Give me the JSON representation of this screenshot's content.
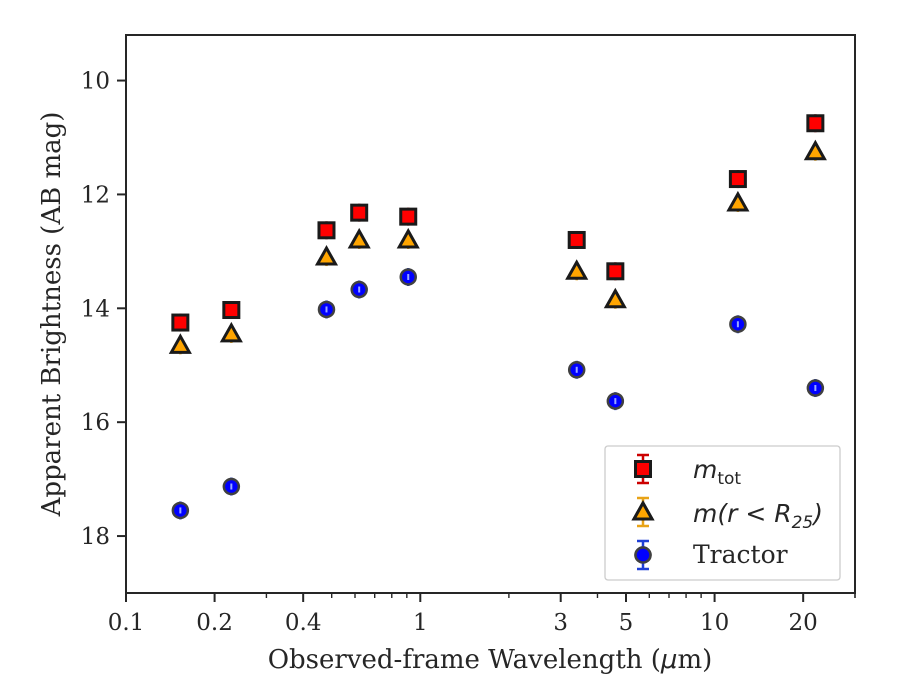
{
  "chart_data": {
    "type": "scatter",
    "title": "",
    "xlabel": "Observed-frame Wavelength (",
    "xlabel_unit": "μ",
    "xlabel_tail": "m)",
    "ylabel": "Apparent Brightness (AB mag)",
    "xscale": "log",
    "xlim": [
      0.1,
      30
    ],
    "ylim": [
      19,
      9.2
    ],
    "y_inverted": true,
    "grid": false,
    "legend_position": "bottom-right",
    "x_ticks": [
      {
        "value": 0.1,
        "label": "0.1"
      },
      {
        "value": 0.2,
        "label": "0.2"
      },
      {
        "value": 0.4,
        "label": "0.4"
      },
      {
        "value": 1,
        "label": "1"
      },
      {
        "value": 3,
        "label": "3"
      },
      {
        "value": 5,
        "label": "5"
      },
      {
        "value": 10,
        "label": "10"
      },
      {
        "value": 20,
        "label": "20"
      }
    ],
    "y_ticks": [
      {
        "value": 10,
        "label": "10"
      },
      {
        "value": 12,
        "label": "12"
      },
      {
        "value": 14,
        "label": "14"
      },
      {
        "value": 16,
        "label": "16"
      },
      {
        "value": 18,
        "label": "18"
      }
    ],
    "series": [
      {
        "legend_base": "m",
        "legend_sub": "tot",
        "legend_tail": "",
        "marker": "square",
        "color": "#ff0000",
        "edge": "#1a1a1a",
        "error_color": "#cc0000",
        "points": [
          {
            "x": 0.153,
            "y": 14.25
          },
          {
            "x": 0.228,
            "y": 14.03
          },
          {
            "x": 0.48,
            "y": 12.63
          },
          {
            "x": 0.62,
            "y": 12.32
          },
          {
            "x": 0.91,
            "y": 12.39
          },
          {
            "x": 3.4,
            "y": 12.8
          },
          {
            "x": 4.6,
            "y": 13.35
          },
          {
            "x": 12.0,
            "y": 11.73
          },
          {
            "x": 22.0,
            "y": 10.75
          }
        ]
      },
      {
        "legend_base": "m(r < R",
        "legend_sub": "25",
        "legend_tail": ")",
        "marker": "triangle",
        "color": "#ffa500",
        "edge": "#1a1a1a",
        "error_color": "#e8a317",
        "points": [
          {
            "x": 0.153,
            "y": 14.65
          },
          {
            "x": 0.228,
            "y": 14.45
          },
          {
            "x": 0.48,
            "y": 13.1
          },
          {
            "x": 0.62,
            "y": 12.8
          },
          {
            "x": 0.91,
            "y": 12.8
          },
          {
            "x": 3.4,
            "y": 13.35
          },
          {
            "x": 4.6,
            "y": 13.85
          },
          {
            "x": 12.0,
            "y": 12.15
          },
          {
            "x": 22.0,
            "y": 11.25
          }
        ]
      },
      {
        "legend_base": "Tractor",
        "legend_sub": "",
        "legend_tail": "",
        "marker": "circle",
        "color": "#0000ff",
        "edge": "#404040",
        "error_color": "#1f3fd6",
        "points": [
          {
            "x": 0.153,
            "y": 17.55
          },
          {
            "x": 0.228,
            "y": 17.13
          },
          {
            "x": 0.48,
            "y": 14.02
          },
          {
            "x": 0.62,
            "y": 13.67
          },
          {
            "x": 0.91,
            "y": 13.45
          },
          {
            "x": 3.4,
            "y": 15.08
          },
          {
            "x": 4.6,
            "y": 15.63
          },
          {
            "x": 12.0,
            "y": 14.28
          },
          {
            "x": 22.0,
            "y": 15.4
          }
        ]
      }
    ]
  }
}
